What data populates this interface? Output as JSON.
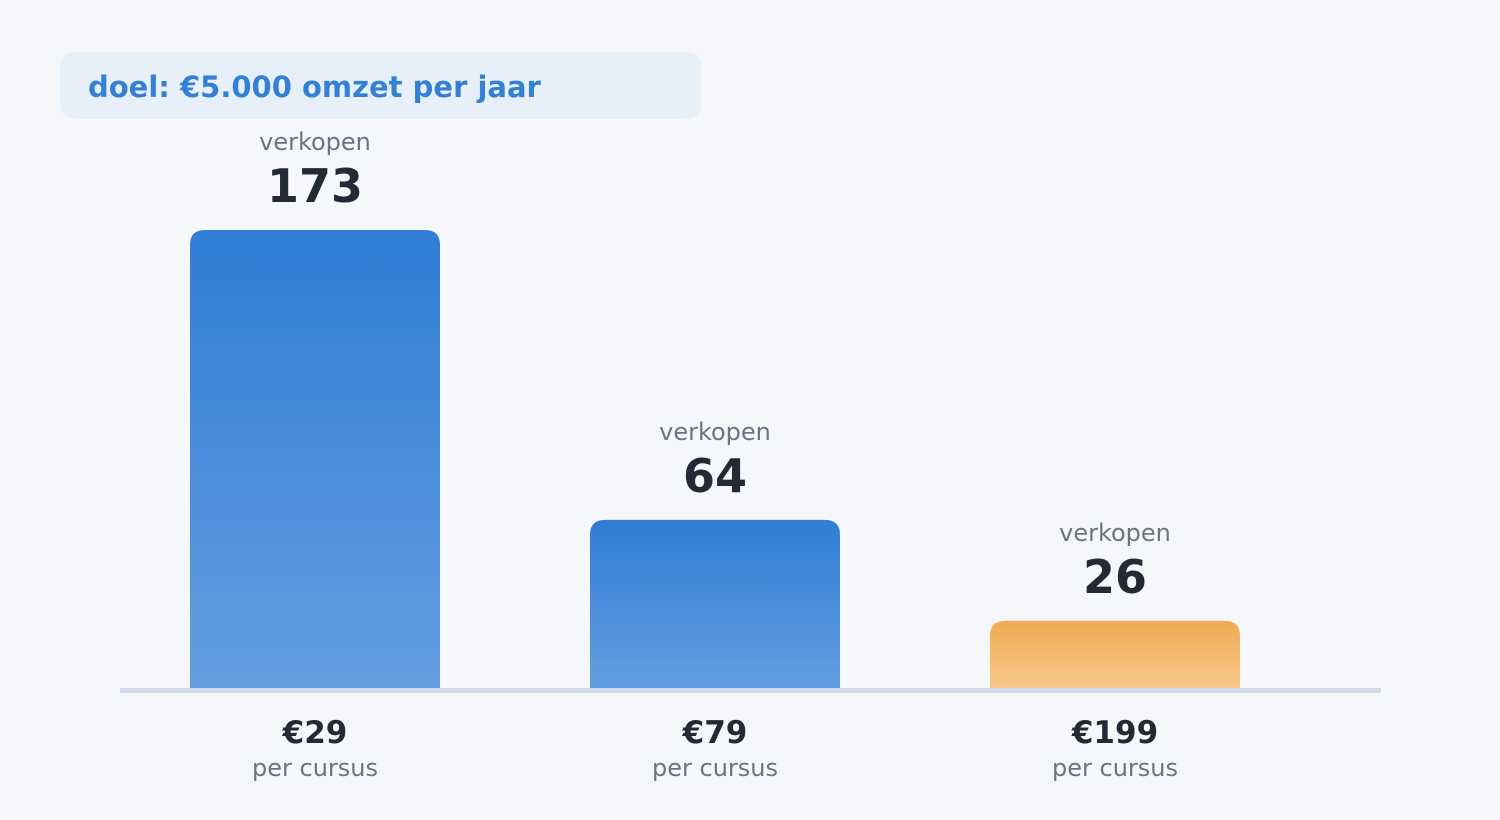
{
  "header": {
    "goal_label": "doel: €5.000 omzet per jaar"
  },
  "chart_data": {
    "type": "bar",
    "title": "",
    "categories": [
      "€29",
      "€79",
      "€199"
    ],
    "category_sublabel": "per cursus",
    "value_label": "verkopen",
    "series": [
      {
        "values": [
          173,
          64,
          26
        ]
      }
    ],
    "bar_colors": [
      "blue",
      "blue",
      "orange"
    ],
    "colors": {
      "blue_top": "#2f7dd6",
      "blue_bottom": "#649ee0",
      "orange_top": "#f1aa52",
      "orange_bottom": "#f7c98b",
      "baseline": "#d1daea",
      "value_text": "#232a35",
      "muted_text": "#6c7483",
      "background": "#f5f7fb"
    },
    "ylim": [
      0,
      173
    ],
    "grid": false,
    "legend": "none"
  }
}
